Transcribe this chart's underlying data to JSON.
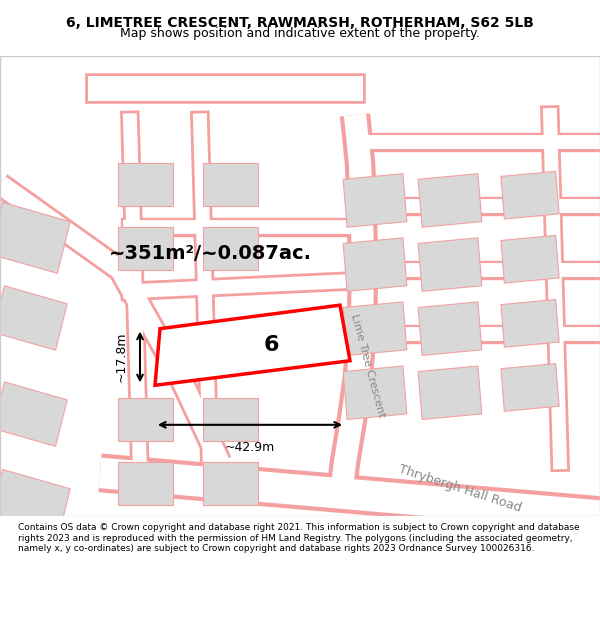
{
  "title": "6, LIMETREE CRESCENT, RAWMARSH, ROTHERHAM, S62 5LB",
  "subtitle": "Map shows position and indicative extent of the property.",
  "area_text": "~351m²/~0.087ac.",
  "width_label": "~42.9m",
  "height_label": "~17.8m",
  "property_number": "6",
  "footer": "Contains OS data © Crown copyright and database right 2021. This information is subject to Crown copyright and database rights 2023 and is reproduced with the permission of HM Land Registry. The polygons (including the associated geometry, namely x, y co-ordinates) are subject to Crown copyright and database rights 2023 Ordnance Survey 100026316.",
  "bg_color": "#f5f5f5",
  "map_bg": "#ffffff",
  "property_color": "#ff0000",
  "road_color": "#f4a0a0",
  "building_color": "#d8d8d8",
  "street_label1": "Lime Tree Crescent",
  "street_label2": "Thrybergh Hall Road"
}
